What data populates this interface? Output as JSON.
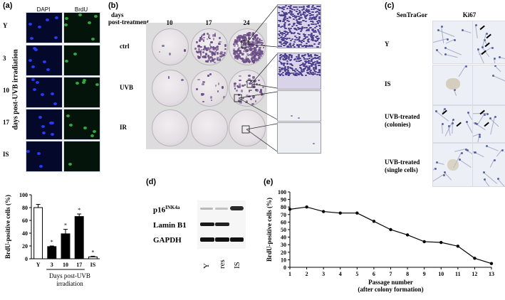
{
  "panels": {
    "a": {
      "label": "(a)",
      "col_headers": [
        "DAPI",
        "BrdU"
      ],
      "row_labels": [
        "Y",
        "3",
        "10",
        "17",
        "IS"
      ],
      "side_label": "days post-UVB irradiation"
    },
    "b": {
      "label": "(b)",
      "header_days": "days",
      "header_post": "post-treatment",
      "columns": [
        "10",
        "17",
        "24"
      ],
      "rows": [
        "ctrl",
        "UVB",
        "IR"
      ]
    },
    "c": {
      "label": "(c)",
      "col_headers": [
        "SenTraGor",
        "Ki67"
      ],
      "row_labels": [
        "Y",
        "IS",
        "UVB-treated\n(colonies)",
        "UVB-treated\n(single cells)"
      ]
    },
    "d": {
      "label": "(d)",
      "bands": [
        "p16",
        "Lamin B1",
        "GAPDH"
      ],
      "p16_sup": "INK4a",
      "lanes": [
        "Y",
        "res",
        "IS"
      ]
    },
    "e": {
      "label": "(e)"
    }
  },
  "chart_data": [
    {
      "type": "bar",
      "categories": [
        "Y",
        "3",
        "10",
        "17",
        "IS"
      ],
      "values": [
        80,
        19,
        39,
        66,
        3
      ],
      "errors": [
        5,
        1,
        7,
        4,
        1
      ],
      "significance": [
        "",
        "*",
        "*",
        "*",
        "*"
      ],
      "fill": [
        "white",
        "black",
        "black",
        "black",
        "white"
      ],
      "ylabel": "BrdU-positive cells (%)",
      "xlabel": "Days post-UVB\nirradiation",
      "ylim": [
        0,
        100
      ],
      "yticks": [
        0,
        20,
        40,
        60,
        80,
        100
      ]
    },
    {
      "type": "line",
      "x": [
        1,
        2,
        3,
        4,
        5,
        6,
        7,
        8,
        9,
        10,
        11,
        12,
        13
      ],
      "y": [
        77,
        80,
        74,
        72,
        72,
        61,
        50,
        43,
        34,
        33,
        28,
        12,
        5
      ],
      "ylabel": "BrdU-positive cells (%)",
      "xlabel": "Passage number\n(after colony formation)",
      "ylim": [
        0,
        100
      ],
      "yticks": [
        0,
        10,
        20,
        30,
        40,
        50,
        60,
        70,
        80,
        90,
        100
      ],
      "xticks": [
        1,
        2,
        3,
        4,
        5,
        6,
        7,
        8,
        9,
        10,
        11,
        12,
        13
      ]
    }
  ]
}
